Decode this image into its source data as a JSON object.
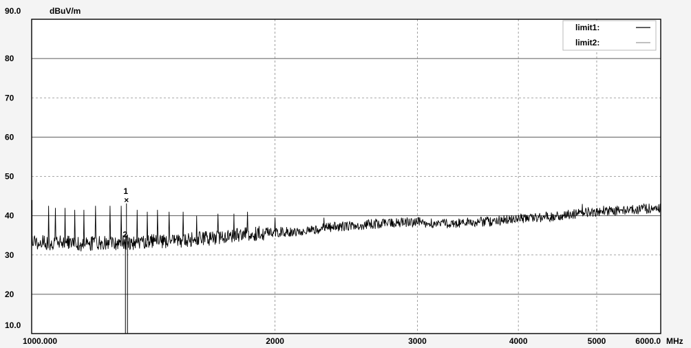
{
  "chart_data": {
    "type": "line",
    "x_scale": "log",
    "xlim": [
      1000,
      6000
    ],
    "ylim": [
      10,
      90
    ],
    "y_unit": "dBuV/m",
    "x_unit": "MHz",
    "grid": true,
    "legend_position": "top-right",
    "y_tick_labels": [
      {
        "value": 90,
        "label": "90.0"
      },
      {
        "value": 80,
        "label": "80"
      },
      {
        "value": 70,
        "label": "70"
      },
      {
        "value": 60,
        "label": "60"
      },
      {
        "value": 50,
        "label": "50"
      },
      {
        "value": 40,
        "label": "40"
      },
      {
        "value": 30,
        "label": "30"
      },
      {
        "value": 20,
        "label": "20"
      },
      {
        "value": 10,
        "label": "10.0"
      }
    ],
    "x_tick_labels": [
      {
        "value": 1000,
        "label": "1000.000"
      },
      {
        "value": 2000,
        "label": "2000"
      },
      {
        "value": 3000,
        "label": "3000"
      },
      {
        "value": 4000,
        "label": "4000"
      },
      {
        "value": 5000,
        "label": "5000"
      },
      {
        "value": 6000,
        "label": "6000.0"
      }
    ],
    "series": [
      {
        "name": "limit1:",
        "values": [],
        "color": "#000000"
      },
      {
        "name": "limit2:",
        "values": [],
        "color": "#9a9a9a"
      },
      {
        "color": "#000000",
        "x": [
          1000,
          1050,
          1100,
          1150,
          1200,
          1250,
          1300,
          1350,
          1400,
          1450,
          1500,
          1550,
          1600,
          1650,
          1700,
          1750,
          1800,
          1850,
          1900,
          1950,
          2000,
          2100,
          2200,
          2300,
          2400,
          2500,
          2600,
          2700,
          2800,
          2900,
          3000,
          3100,
          3200,
          3300,
          3400,
          3500,
          3600,
          3700,
          3800,
          3900,
          4000,
          4200,
          4400,
          4600,
          4800,
          5000,
          5200,
          5400,
          5600,
          5800,
          6000
        ],
        "y": [
          33.5,
          33.0,
          33.2,
          32.8,
          33.0,
          33.0,
          33.2,
          32.8,
          33.5,
          33.5,
          33.6,
          33.8,
          34.0,
          34.2,
          34.5,
          34.8,
          35.0,
          35.2,
          35.5,
          35.6,
          35.8,
          36.0,
          36.2,
          36.8,
          37.2,
          37.5,
          37.8,
          38.0,
          38.2,
          38.3,
          38.3,
          38.2,
          38.0,
          38.0,
          38.2,
          38.3,
          38.5,
          38.5,
          38.8,
          39.0,
          39.2,
          39.5,
          39.8,
          40.2,
          40.8,
          41.0,
          41.2,
          41.5,
          41.5,
          41.8,
          42.0
        ]
      }
    ],
    "spikes": [
      {
        "x": 1050,
        "y": 42.5
      },
      {
        "x": 1070,
        "y": 42.0
      },
      {
        "x": 1100,
        "y": 42.0
      },
      {
        "x": 1130,
        "y": 41.5
      },
      {
        "x": 1160,
        "y": 41.5
      },
      {
        "x": 1200,
        "y": 42.5
      },
      {
        "x": 1250,
        "y": 42.5
      },
      {
        "x": 1290,
        "y": 42.5
      },
      {
        "x": 1350,
        "y": 41.5
      },
      {
        "x": 1390,
        "y": 41.0
      },
      {
        "x": 1430,
        "y": 41.5
      },
      {
        "x": 1480,
        "y": 41.0
      },
      {
        "x": 1540,
        "y": 41.0
      },
      {
        "x": 1600,
        "y": 40.0
      },
      {
        "x": 1700,
        "y": 40.5
      },
      {
        "x": 1780,
        "y": 40.5
      },
      {
        "x": 1850,
        "y": 41.0
      },
      {
        "x": 2000,
        "y": 39.5
      },
      {
        "x": 2300,
        "y": 39.5
      },
      {
        "x": 4800,
        "y": 43.0
      },
      {
        "x": 5100,
        "y": 42.5
      },
      {
        "x": 5200,
        "y": 42.0
      }
    ],
    "markers": [
      {
        "label": "1",
        "symbol": "×",
        "x": 1310,
        "y": 44.0
      },
      {
        "label": "2",
        "symbol": "",
        "x": 1310,
        "y": 34.5
      }
    ]
  }
}
